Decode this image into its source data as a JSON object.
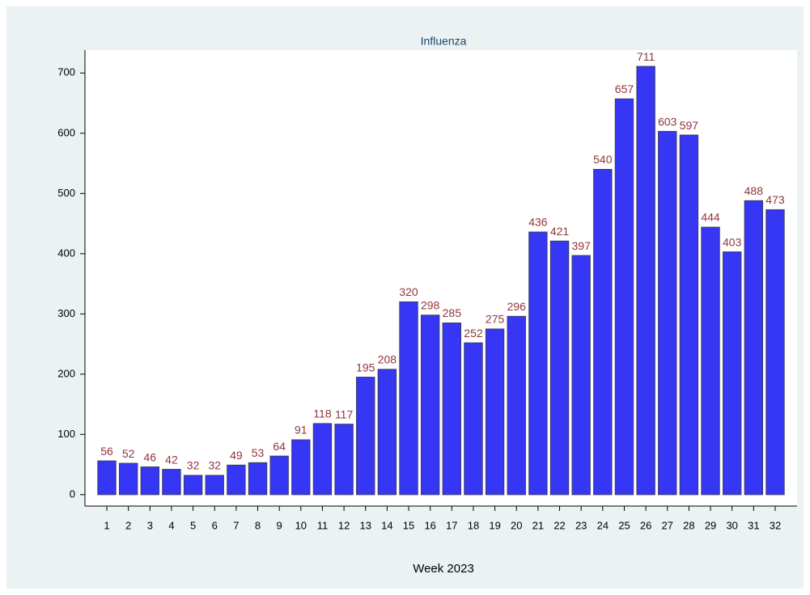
{
  "chart_data": {
    "type": "bar",
    "title": "Influenza",
    "x_label": "Week 2023",
    "categories": [
      "1",
      "2",
      "3",
      "4",
      "5",
      "6",
      "7",
      "8",
      "9",
      "10",
      "11",
      "12",
      "13",
      "14",
      "15",
      "16",
      "17",
      "18",
      "19",
      "20",
      "21",
      "22",
      "23",
      "24",
      "25",
      "26",
      "27",
      "28",
      "29",
      "30",
      "31",
      "32"
    ],
    "values": [
      56,
      52,
      46,
      42,
      32,
      32,
      49,
      53,
      64,
      91,
      118,
      117,
      195,
      208,
      320,
      298,
      285,
      252,
      275,
      296,
      436,
      421,
      397,
      540,
      657,
      711,
      603,
      597,
      444,
      403,
      488,
      473
    ],
    "color": "#3636f5",
    "label_color": "#90353b",
    "ylim": [
      -19,
      738
    ],
    "yticks": [
      0,
      100,
      200,
      300,
      400,
      500,
      600,
      700
    ],
    "grid": false
  }
}
